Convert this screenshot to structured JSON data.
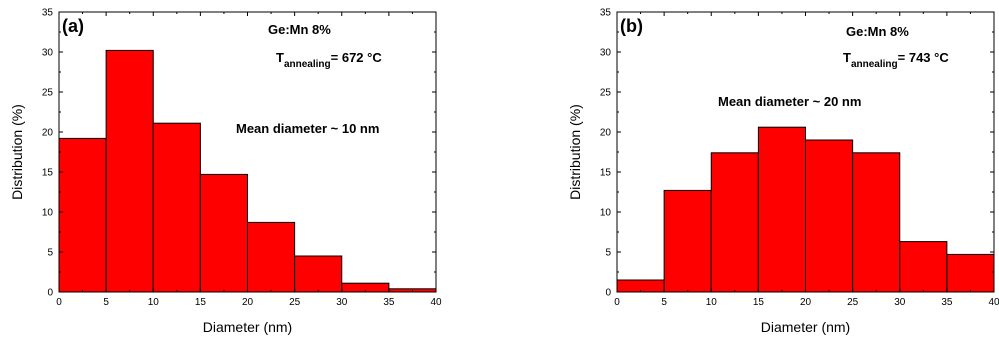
{
  "chart_data": [
    {
      "type": "bar",
      "panel_label": "(a)",
      "bin_edges": [
        0,
        5,
        10,
        15,
        20,
        25,
        30,
        35,
        40
      ],
      "values": [
        19.2,
        30.2,
        21.1,
        14.7,
        8.7,
        4.5,
        1.1,
        0.4
      ],
      "xlabel": "Diameter (nm)",
      "ylabel": "Distribution (%)",
      "xlim": [
        0,
        40
      ],
      "ylim": [
        0,
        35
      ],
      "xticks": [
        "0",
        "5",
        "10",
        "15",
        "20",
        "25",
        "30",
        "35",
        "40"
      ],
      "yticks": [
        "0",
        "5",
        "10",
        "15",
        "20",
        "25",
        "30",
        "35"
      ],
      "bar_color": "#ff0000",
      "grid": false,
      "annotations": {
        "sample": "Ge:Mn 8%",
        "temp_prefix": "T",
        "temp_sub": "annealing",
        "temp_value": "= 672 °C",
        "mean": "Mean diameter ~ 10 nm"
      }
    },
    {
      "type": "bar",
      "panel_label": "(b)",
      "bin_edges": [
        0,
        5,
        10,
        15,
        20,
        25,
        30,
        35,
        40
      ],
      "values": [
        1.5,
        12.7,
        17.4,
        20.6,
        19.0,
        17.4,
        6.3,
        4.7
      ],
      "xlabel": "Diameter (nm)",
      "ylabel": "Distribution (%)",
      "xlim": [
        0,
        40
      ],
      "ylim": [
        0,
        35
      ],
      "xticks": [
        "0",
        "5",
        "10",
        "15",
        "20",
        "25",
        "30",
        "35",
        "40"
      ],
      "yticks": [
        "0",
        "5",
        "10",
        "15",
        "20",
        "25",
        "30",
        "35"
      ],
      "bar_color": "#ff0000",
      "grid": false,
      "annotations": {
        "sample": "Ge:Mn 8%",
        "temp_prefix": "T",
        "temp_sub": "annealing",
        "temp_value": "= 743 °C",
        "mean": "Mean diameter ~ 20 nm"
      }
    }
  ]
}
